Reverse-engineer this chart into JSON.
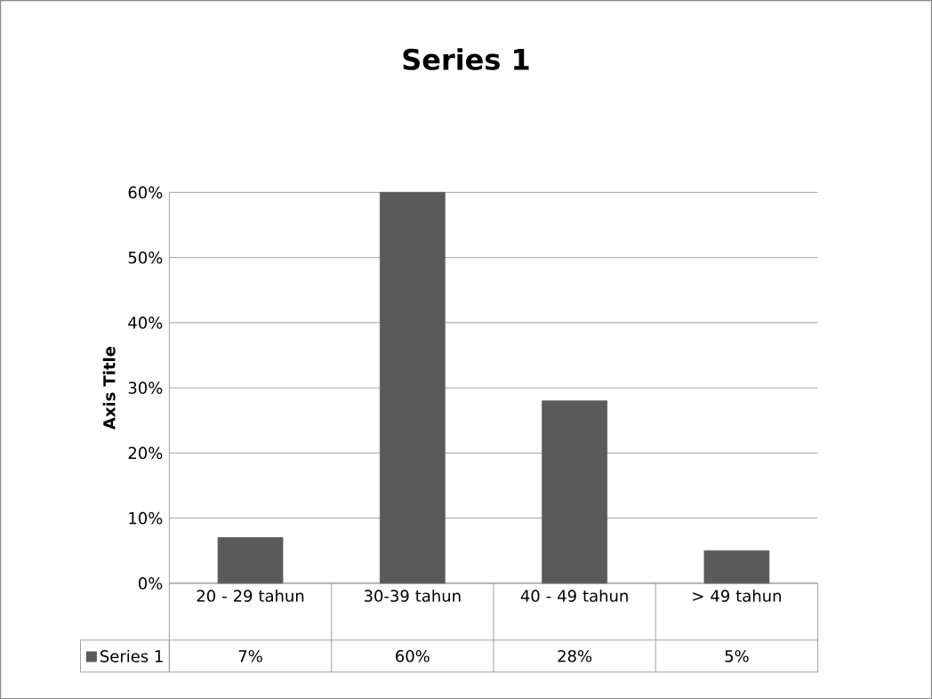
{
  "chart_data": {
    "type": "bar",
    "title": "Series 1",
    "ylabel": "Axis Title",
    "categories": [
      "20 - 29 tahun",
      "30-39 tahun",
      "40 - 49 tahun",
      "> 49 tahun"
    ],
    "series": [
      {
        "name": "Series 1",
        "color": "#5a5a5a",
        "values": [
          7,
          60,
          28,
          5
        ],
        "value_labels": [
          "7%",
          "60%",
          "28%",
          "5%"
        ]
      }
    ],
    "ylim": [
      0,
      60
    ],
    "yticks": [
      {
        "value": 0,
        "label": "0%"
      },
      {
        "value": 10,
        "label": "10%"
      },
      {
        "value": 20,
        "label": "20%"
      },
      {
        "value": 30,
        "label": "30%"
      },
      {
        "value": 40,
        "label": "40%"
      },
      {
        "value": 50,
        "label": "50%"
      },
      {
        "value": 60,
        "label": "60%"
      }
    ],
    "grid": "y",
    "legend": "bottom"
  }
}
